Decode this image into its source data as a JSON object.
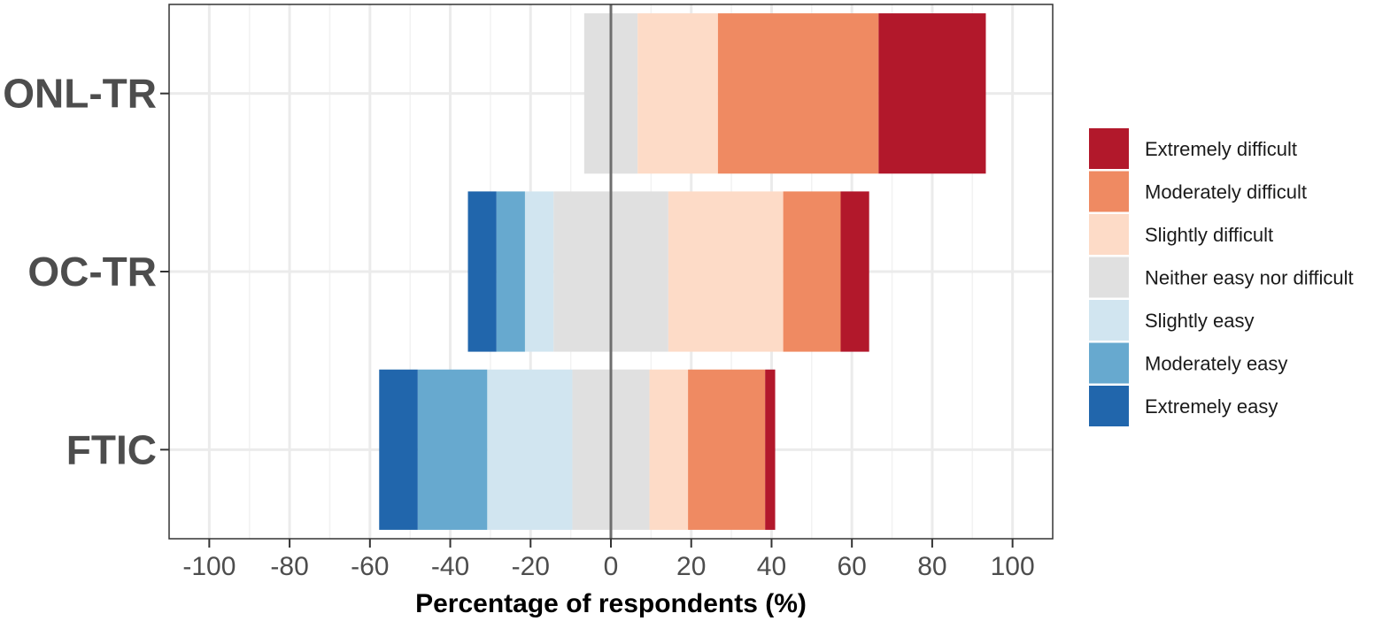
{
  "chart_data": {
    "type": "bar",
    "orientation": "horizontal",
    "layout": "diverging-stacked",
    "title": "",
    "xlabel": "Percentage of respondents (%)",
    "ylabel": "",
    "xlim": [
      -110,
      110
    ],
    "x_ticks": [
      -100,
      -80,
      -60,
      -40,
      -20,
      0,
      20,
      40,
      60,
      80,
      100
    ],
    "x_tick_labels": [
      "-100",
      "-80",
      "-60",
      "-40",
      "-20",
      "0",
      "20",
      "40",
      "60",
      "80",
      "100"
    ],
    "grid": true,
    "legend_position": "right",
    "categories": [
      "ONL-TR",
      "OC-TR",
      "FTIC"
    ],
    "neutral_split": "half on each side of zero",
    "series": [
      {
        "name": "Extremely easy",
        "color": "#2166ac",
        "side": "negative",
        "values": [
          0,
          7.1,
          9.6
        ]
      },
      {
        "name": "Moderately easy",
        "color": "#67a9cf",
        "side": "negative",
        "values": [
          0,
          7.1,
          17.3
        ]
      },
      {
        "name": "Slightly easy",
        "color": "#d1e5f0",
        "side": "negative",
        "values": [
          0,
          7.1,
          21.2
        ]
      },
      {
        "name": "Neither easy nor difficult",
        "color": "#e0e0e0",
        "side": "neutral",
        "values": [
          13.3,
          28.6,
          19.2
        ]
      },
      {
        "name": "Slightly difficult",
        "color": "#fddbc7",
        "side": "positive",
        "values": [
          20.0,
          28.6,
          9.6
        ]
      },
      {
        "name": "Moderately difficult",
        "color": "#ef8a62",
        "side": "positive",
        "values": [
          40.0,
          14.3,
          19.2
        ]
      },
      {
        "name": "Extremely difficult",
        "color": "#b2182b",
        "side": "positive",
        "values": [
          26.7,
          7.1,
          2.5
        ]
      }
    ],
    "legend_order": [
      "Extremely difficult",
      "Moderately difficult",
      "Slightly difficult",
      "Neither easy nor difficult",
      "Slightly easy",
      "Moderately easy",
      "Extremely easy"
    ]
  }
}
